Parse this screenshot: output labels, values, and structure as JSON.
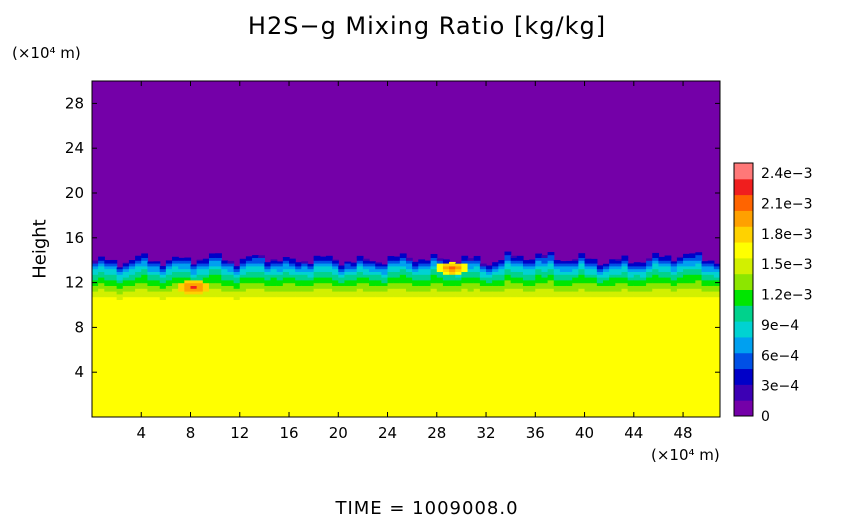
{
  "header": {
    "title": "H2S−g Mixing Ratio [kg/kg]"
  },
  "footer": {
    "time_label": "TIME  =  1009008.0"
  },
  "chart_data": {
    "type": "heatmap",
    "title": "H2S−g Mixing Ratio [kg/kg]",
    "xlabel": "",
    "ylabel": "Height",
    "x_unit_label": "(×10⁴ m)",
    "y_unit_label": "(×10⁴ m)",
    "xlim": [
      0,
      51
    ],
    "ylim": [
      0,
      30
    ],
    "x_ticks": [
      4,
      8,
      12,
      16,
      20,
      24,
      28,
      32,
      36,
      40,
      44,
      48
    ],
    "x_tick_labels": [
      "4",
      "8",
      "12",
      "16",
      "20",
      "24",
      "28",
      "32",
      "36",
      "40",
      "44",
      "48"
    ],
    "y_ticks": [
      4,
      8,
      12,
      16,
      20,
      24,
      28
    ],
    "y_tick_labels": [
      "4",
      "8",
      "12",
      "16",
      "20",
      "24",
      "28"
    ],
    "colorbar": {
      "min": 0,
      "max": 0.0025,
      "ticks": [
        0,
        0.0003,
        0.0006,
        0.0009,
        0.0012,
        0.0015,
        0.0018,
        0.0021,
        0.0024
      ],
      "tick_labels": [
        "0",
        "3e−4",
        "6e−4",
        "9e−4",
        "1.2e−3",
        "1.5e−3",
        "1.8e−3",
        "2.1e−3",
        "2.4e−3"
      ],
      "colors": [
        "#7400a8",
        "#3c00b4",
        "#0000c8",
        "#0050e6",
        "#00a0f0",
        "#00d2d2",
        "#00d28c",
        "#00e600",
        "#8ce600",
        "#d2f000",
        "#ffff00",
        "#ffd200",
        "#ffa000",
        "#ff6400",
        "#f01e1e",
        "#ff7878"
      ]
    },
    "regions": {
      "background_value": 0,
      "lower_layer_value": 0.0017,
      "lower_layer_top_y": 10,
      "mixing_zone_y_range": [
        10,
        14.5
      ],
      "interface_height_profile": {
        "x": [
          0,
          2,
          4,
          6,
          8,
          10,
          12,
          14,
          16,
          18,
          20,
          22,
          24,
          26,
          28,
          30,
          32,
          34,
          36,
          38,
          40,
          42,
          44,
          46,
          48,
          51
        ],
        "y": [
          14.0,
          13.8,
          14.2,
          13.9,
          14.1,
          14.3,
          13.9,
          14.4,
          13.8,
          14.2,
          14.0,
          13.9,
          14.1,
          14.3,
          14.0,
          14.2,
          13.8,
          14.3,
          14.4,
          14.2,
          14.1,
          13.9,
          14.0,
          14.2,
          14.5,
          14.0
        ]
      },
      "hot_spots": [
        {
          "x": 8,
          "y": 11.5,
          "value": 0.0022
        },
        {
          "x": 29,
          "y": 13.2,
          "value": 0.0021
        }
      ]
    }
  }
}
